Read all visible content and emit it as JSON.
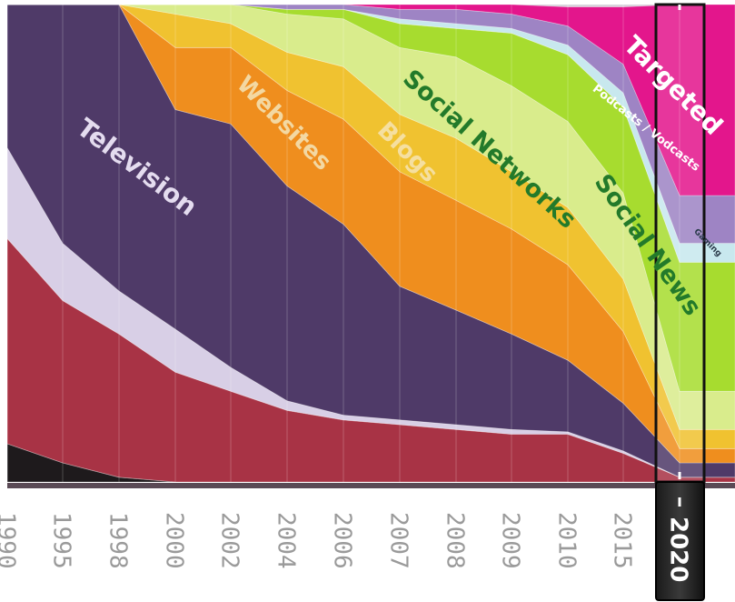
{
  "chart_data": {
    "type": "area",
    "x": [
      "1990",
      "1995",
      "1998",
      "2000",
      "2002",
      "2004",
      "2006",
      "2007",
      "2008",
      "2009",
      "2010",
      "2015",
      "2020"
    ],
    "highlight_x": "2020",
    "ylim": [
      0,
      100
    ],
    "series": [
      {
        "name": "",
        "color": "#1e1a1c",
        "values": [
          8,
          4,
          1,
          0,
          0,
          0,
          0,
          0,
          0,
          0,
          0,
          0,
          0
        ]
      },
      {
        "name": "",
        "color": "#a83345",
        "values": [
          43,
          34,
          30,
          23,
          19,
          15,
          13,
          12,
          11,
          10,
          10,
          6,
          1
        ]
      },
      {
        "name": "",
        "color": "#d8cfe6",
        "values": [
          19,
          12,
          9,
          9,
          5,
          2,
          1,
          1,
          1,
          1,
          0.5,
          0.5,
          0
        ]
      },
      {
        "name": "Television",
        "color": "#4f3a68",
        "values": [
          30,
          50,
          60,
          46,
          51,
          45,
          40,
          28,
          24,
          20,
          15,
          10,
          3
        ]
      },
      {
        "name": "Websites",
        "color": "#ef8e1e",
        "values": [
          0,
          0,
          0,
          13,
          16,
          20,
          22,
          24,
          23,
          22,
          20,
          15,
          3
        ]
      },
      {
        "name": "Blogs",
        "color": "#f0c230",
        "values": [
          0,
          0,
          0,
          7,
          5,
          8,
          11,
          12,
          13,
          12,
          12,
          11,
          4
        ]
      },
      {
        "name": "Social Networks",
        "color": "#d9ec8c",
        "values": [
          0,
          0,
          0,
          2,
          4,
          8,
          10,
          14,
          17,
          18,
          18,
          18,
          8
        ]
      },
      {
        "name": "Social News",
        "color": "#a7dc2f",
        "values": [
          0,
          0,
          0,
          0,
          0,
          1,
          2,
          5,
          6,
          11,
          14,
          18,
          27
        ]
      },
      {
        "name": "Gaming",
        "color": "#c8e8ee",
        "values": [
          0,
          0,
          0,
          0,
          0,
          0,
          0,
          1,
          1,
          1,
          2,
          3,
          4
        ]
      },
      {
        "name": "Podcasts / Vodcasts",
        "color": "#9e84c4",
        "values": [
          0,
          0,
          0,
          0,
          0,
          1,
          1,
          2,
          3,
          3,
          4,
          6,
          10
        ]
      },
      {
        "name": "Targeted",
        "color": "#e3168c",
        "values": [
          0,
          0,
          0,
          0,
          0,
          0,
          0,
          1,
          1,
          2,
          4,
          12,
          40
        ]
      }
    ],
    "labels": [
      {
        "text": "Television",
        "color": "#e4dcef"
      },
      {
        "text": "Websites",
        "color": "#f3d8a2"
      },
      {
        "text": "Blogs",
        "color": "#f5dfa0"
      },
      {
        "text": "Social Networks",
        "color": "#237a2a"
      },
      {
        "text": "Social News",
        "color": "#237a2a"
      },
      {
        "text": "Targeted",
        "color": "#ffffff"
      },
      {
        "text": "Podcasts / Vodcasts",
        "color": "#ffffff"
      },
      {
        "text": "Gaming",
        "color": "#2a3a4a"
      }
    ]
  }
}
